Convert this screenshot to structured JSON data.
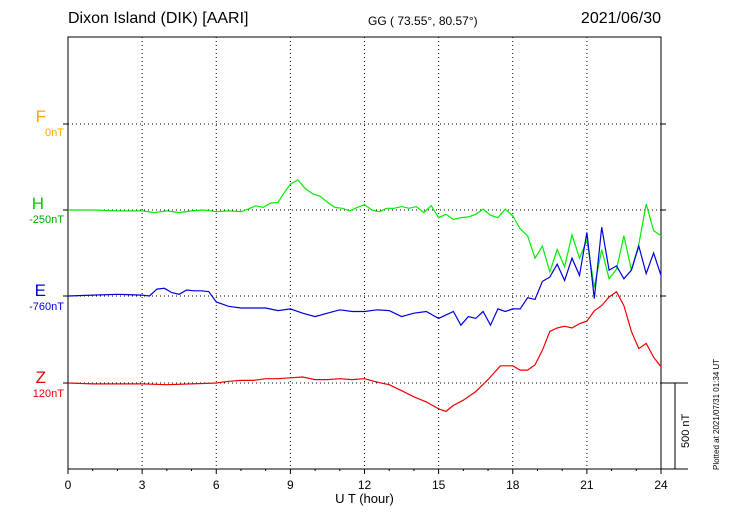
{
  "header": {
    "station": "Dixon Island (DIK)  [AARI]",
    "coords": "GG ( 73.55°,  80.57°)",
    "date": "2021/06/30"
  },
  "components": [
    {
      "key": "F",
      "label": "F",
      "baseline": "0nT",
      "color": "#ffa500"
    },
    {
      "key": "H",
      "label": "H",
      "baseline": "-250nT",
      "color": "#00ee00"
    },
    {
      "key": "E",
      "label": "E",
      "baseline": "-760nT",
      "color": "#0000dd"
    },
    {
      "key": "Z",
      "label": "Z",
      "baseline": "120nT",
      "color": "#ee0000"
    }
  ],
  "scale_bar": "500 nT",
  "plotted": "Plotted at 2021/07/31 01:34 UT",
  "chart_data": {
    "type": "line",
    "xlabel": "U T (hour)",
    "xlim": [
      0,
      24
    ],
    "xticks": [
      "0",
      "3",
      "6",
      "9",
      "12",
      "15",
      "18",
      "21",
      "24"
    ],
    "y_unit": "nT",
    "grid": true,
    "series": [
      {
        "name": "H",
        "x": [
          0,
          1,
          2,
          3,
          3.5,
          4,
          4.5,
          5,
          5.5,
          6,
          6.5,
          7,
          7.3,
          7.6,
          7.9,
          8.2,
          8.5,
          8.8,
          9,
          9.3,
          9.6,
          9.9,
          10.2,
          10.5,
          10.8,
          11.1,
          11.4,
          11.7,
          12,
          12.3,
          12.6,
          12.9,
          13.2,
          13.5,
          13.8,
          14.1,
          14.4,
          14.7,
          15,
          15.3,
          15.6,
          15.9,
          16.2,
          16.5,
          16.8,
          17.1,
          17.4,
          17.7,
          18,
          18.3,
          18.6,
          18.9,
          19.2,
          19.5,
          19.8,
          20.1,
          20.4,
          20.7,
          21,
          21.3,
          21.6,
          21.9,
          22.2,
          22.5,
          22.8,
          23.1,
          23.4,
          23.7,
          24
        ],
        "y": [
          0,
          0,
          -5,
          -5,
          -15,
          -5,
          -15,
          -5,
          0,
          -10,
          -5,
          -10,
          5,
          25,
          15,
          40,
          45,
          110,
          150,
          175,
          125,
          95,
          80,
          45,
          15,
          10,
          -5,
          15,
          30,
          0,
          -10,
          10,
          10,
          20,
          10,
          20,
          -15,
          25,
          -45,
          -25,
          -55,
          -45,
          -40,
          -25,
          5,
          -30,
          -45,
          5,
          -35,
          -110,
          -150,
          -280,
          -210,
          -360,
          -230,
          -330,
          -145,
          -280,
          -175,
          -450,
          -230,
          -400,
          -345,
          -150,
          -350,
          -200,
          35,
          -120,
          -150
        ]
      },
      {
        "name": "E",
        "x": [
          0,
          1,
          2,
          3,
          3.3,
          3.6,
          3.9,
          4.2,
          4.5,
          4.8,
          5.1,
          5.4,
          5.7,
          6,
          6.5,
          7,
          7.5,
          8,
          8.5,
          9,
          9.5,
          10,
          10.5,
          11,
          11.5,
          12,
          12.5,
          13,
          13.5,
          14,
          14.5,
          15,
          15.3,
          15.6,
          15.9,
          16.2,
          16.5,
          16.8,
          17.1,
          17.4,
          17.7,
          18,
          18.3,
          18.6,
          18.9,
          19.2,
          19.5,
          19.8,
          20.1,
          20.4,
          20.7,
          21,
          21.3,
          21.6,
          21.9,
          22.2,
          22.5,
          22.8,
          23.1,
          23.4,
          23.7,
          24
        ],
        "y": [
          0,
          5,
          10,
          5,
          0,
          40,
          45,
          20,
          10,
          35,
          30,
          30,
          25,
          -35,
          -60,
          -70,
          -70,
          -70,
          -85,
          -75,
          -100,
          -120,
          -100,
          -80,
          -90,
          -90,
          -80,
          -85,
          -120,
          -100,
          -90,
          -130,
          -110,
          -90,
          -170,
          -120,
          -130,
          -90,
          -170,
          -75,
          -90,
          -75,
          -75,
          -10,
          -20,
          85,
          110,
          185,
          90,
          220,
          120,
          370,
          -15,
          400,
          150,
          175,
          100,
          150,
          290,
          130,
          250,
          120
        ]
      },
      {
        "name": "Z",
        "x": [
          0,
          1,
          2,
          3,
          4,
          5,
          6,
          6.5,
          7,
          7.5,
          8,
          8.5,
          9,
          9.5,
          10,
          10.5,
          11,
          11.5,
          12,
          12.5,
          13,
          13.5,
          14,
          14.5,
          15,
          15.3,
          15.6,
          16,
          16.5,
          17,
          17.5,
          18,
          18.3,
          18.6,
          18.9,
          19.2,
          19.5,
          19.8,
          20.1,
          20.4,
          20.7,
          21,
          21.3,
          21.6,
          21.9,
          22.2,
          22.5,
          22.8,
          23.1,
          23.4,
          23.7,
          24
        ],
        "y": [
          0,
          -5,
          -5,
          -5,
          -10,
          -5,
          0,
          10,
          15,
          15,
          25,
          25,
          30,
          35,
          20,
          20,
          25,
          20,
          25,
          5,
          -10,
          -45,
          -80,
          -110,
          -150,
          -165,
          -130,
          -100,
          -50,
          20,
          100,
          100,
          75,
          75,
          105,
          190,
          300,
          320,
          330,
          320,
          345,
          360,
          420,
          450,
          500,
          530,
          450,
          300,
          200,
          230,
          150,
          95
        ]
      }
    ]
  }
}
